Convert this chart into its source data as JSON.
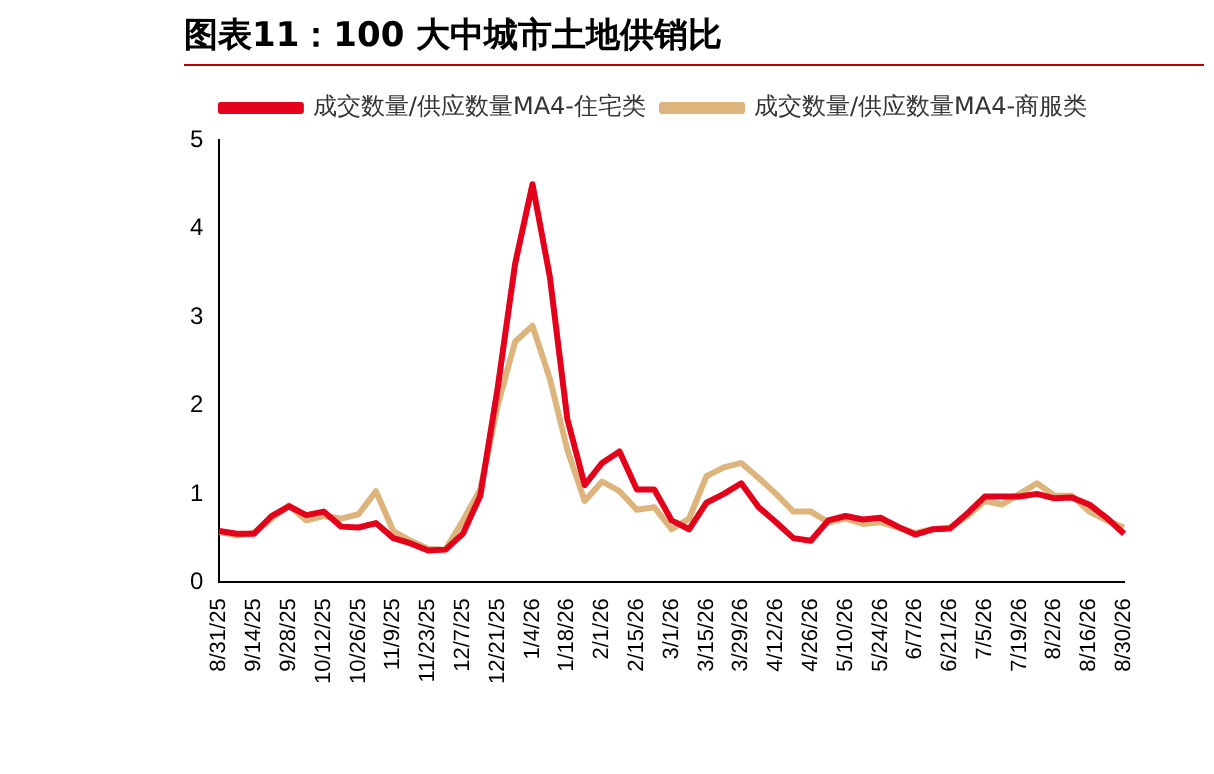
{
  "chart_data": {
    "type": "line",
    "title": "图表11：100 大中城市土地供销比",
    "categories": [
      "8/31/25",
      null,
      "9/14/25",
      null,
      "9/28/25",
      null,
      "10/12/25",
      null,
      "10/26/25",
      null,
      "11/9/25",
      null,
      "11/23/25",
      null,
      "12/7/25",
      null,
      "12/21/25",
      null,
      "1/4/26",
      null,
      "1/18/26",
      null,
      "2/1/26",
      null,
      "2/15/26",
      null,
      "3/1/26",
      null,
      "3/15/26",
      null,
      "3/29/26",
      null,
      "4/12/26",
      null,
      "4/26/26",
      null,
      "5/10/26",
      null,
      "5/24/26",
      null,
      "6/7/26",
      null,
      "6/21/26",
      null,
      "7/5/26",
      null,
      "7/19/26",
      null,
      "8/2/26",
      null,
      "8/16/26",
      null,
      "8/30/26"
    ],
    "series": [
      {
        "name": "成交数量/供应数量MA4-住宅类",
        "color": "#e2001a",
        "values": [
          0.58,
          0.55,
          0.55,
          0.75,
          0.86,
          0.76,
          0.8,
          0.63,
          0.62,
          0.67,
          0.5,
          0.44,
          0.36,
          0.37,
          0.55,
          0.98,
          2.2,
          3.6,
          4.5,
          3.45,
          1.85,
          1.1,
          1.35,
          1.48,
          1.05,
          1.05,
          0.7,
          0.6,
          0.9,
          1.0,
          1.12,
          0.85,
          0.68,
          0.5,
          0.47,
          0.7,
          0.75,
          0.71,
          0.73,
          0.63,
          0.54,
          0.6,
          0.61,
          0.78,
          0.97,
          0.97,
          0.97,
          1.0,
          0.95,
          0.96,
          0.88,
          0.73,
          0.55
        ]
      },
      {
        "name": "成交数量/供应数量MA4-商服类",
        "color": "#dcb47c",
        "values": [
          0.57,
          0.53,
          0.56,
          0.72,
          0.87,
          0.7,
          0.75,
          0.72,
          0.77,
          1.03,
          0.58,
          0.47,
          0.38,
          0.37,
          0.7,
          1.05,
          2.0,
          2.72,
          2.9,
          2.3,
          1.5,
          0.92,
          1.14,
          1.03,
          0.82,
          0.85,
          0.6,
          0.72,
          1.2,
          1.3,
          1.35,
          1.18,
          1.0,
          0.8,
          0.8,
          0.68,
          0.72,
          0.66,
          0.68,
          0.62,
          0.56,
          0.6,
          0.62,
          0.75,
          0.92,
          0.88,
          1.0,
          1.12,
          0.98,
          0.98,
          0.8,
          0.7,
          0.62
        ]
      }
    ],
    "ylim": [
      0,
      5
    ],
    "yticks": [
      0,
      1,
      2,
      3,
      4,
      5
    ],
    "grid": false,
    "legend": "top",
    "marker": "none",
    "line_style": "solid"
  }
}
